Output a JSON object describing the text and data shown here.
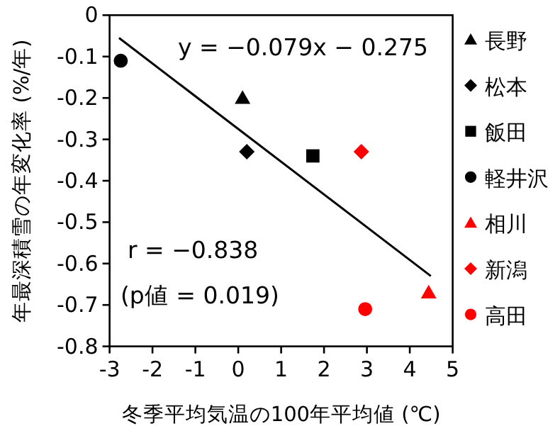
{
  "chart_data": {
    "type": "scatter",
    "xlabel": "冬季平均気温の100年平均値 (℃)",
    "ylabel": "年最深積雪の年変化率 (%/年)",
    "xlim": [
      -3,
      5
    ],
    "ylim": [
      -0.8,
      0
    ],
    "xticks": [
      -3,
      -2,
      -1,
      0,
      1,
      2,
      3,
      4,
      5
    ],
    "yticks": [
      0,
      -0.1,
      -0.2,
      -0.3,
      -0.4,
      -0.5,
      -0.6,
      -0.7,
      -0.8
    ],
    "grid": false,
    "legend": "right",
    "annotations": [
      "y = −0.079x − 0.275",
      "r = −0.838",
      "(p値 = 0.019)"
    ],
    "series": [
      {
        "name": "長野",
        "color": "#000000",
        "marker": "triangle",
        "x": [
          0.1
        ],
        "values": [
          -0.2
        ]
      },
      {
        "name": "松本",
        "color": "#000000",
        "marker": "diamond",
        "x": [
          0.2
        ],
        "values": [
          -0.33
        ]
      },
      {
        "name": "飯田",
        "color": "#000000",
        "marker": "square",
        "x": [
          1.74
        ],
        "values": [
          -0.34
        ]
      },
      {
        "name": "軽井沢",
        "color": "#000000",
        "marker": "circle",
        "x": [
          -2.74
        ],
        "values": [
          -0.11
        ]
      },
      {
        "name": "相川",
        "color": "#ff0000",
        "marker": "triangle",
        "x": [
          4.44
        ],
        "values": [
          -0.67
        ]
      },
      {
        "name": "新潟",
        "color": "#ff0000",
        "marker": "diamond",
        "x": [
          2.87
        ],
        "values": [
          -0.33
        ]
      },
      {
        "name": "高田",
        "color": "#ff0000",
        "marker": "circle",
        "x": [
          2.96
        ],
        "values": [
          -0.71
        ]
      },
      {
        "type": "line",
        "color": "#000000",
        "marker": "none",
        "x": [
          -2.78,
          4.49
        ],
        "values": [
          -0.055,
          -0.63
        ]
      }
    ]
  }
}
